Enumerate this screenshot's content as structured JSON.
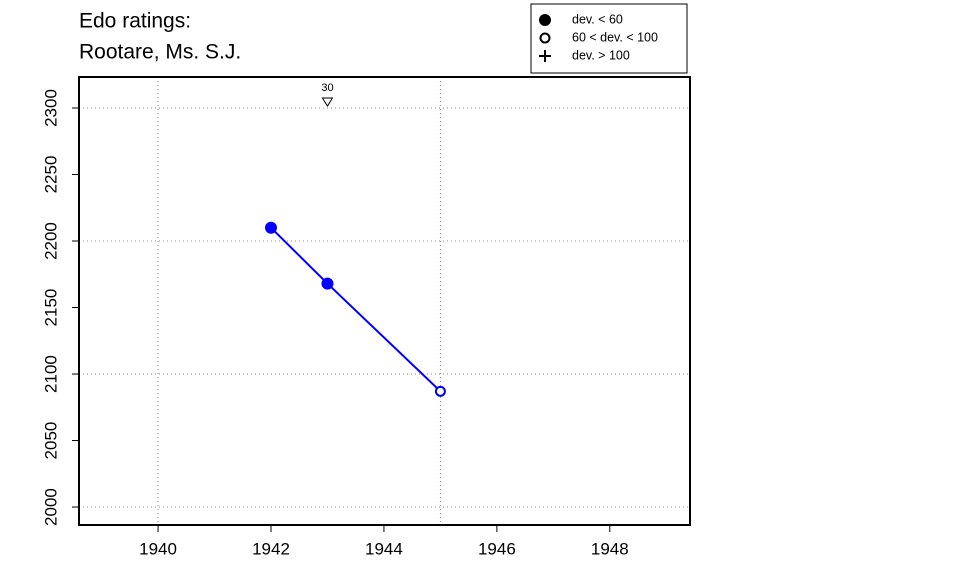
{
  "chart_data": {
    "type": "line",
    "title_lines": [
      "Edo ratings:",
      "Rootare, Ms. S.J."
    ],
    "x": [
      1942,
      1943,
      1945
    ],
    "series": [
      {
        "color": "#0000ff",
        "values": [
          2210,
          2168,
          2087
        ],
        "markers": [
          "filled",
          "filled",
          "open"
        ]
      }
    ],
    "xlim": [
      1938.6,
      1949.42
    ],
    "ylim": [
      1986.5,
      2323.3
    ],
    "xticks": [
      1940,
      1942,
      1944,
      1946,
      1948
    ],
    "yticks": [
      2000,
      2050,
      2100,
      2150,
      2200,
      2250,
      2300
    ],
    "xgrid": [
      1940,
      1945
    ],
    "ygrid": [
      2000,
      2100,
      2200,
      2300
    ],
    "annotations": [
      {
        "x": 1943,
        "value": 30
      }
    ],
    "legend": [
      {
        "label": "dev. < 60",
        "marker": "filled"
      },
      {
        "label": "60 < dev. < 100",
        "marker": "open"
      },
      {
        "label": "dev. > 100",
        "marker": "plus"
      }
    ]
  }
}
